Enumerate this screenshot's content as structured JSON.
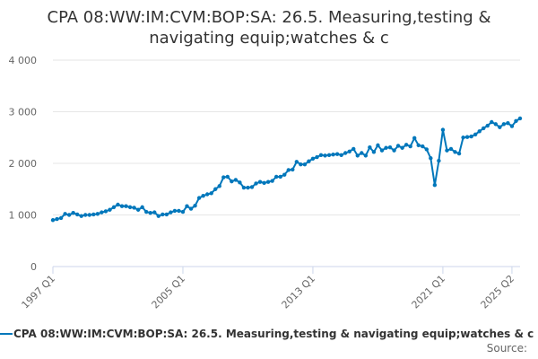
{
  "chart": {
    "title_line1": "CPA 08:WW:IM:CVM:BOP:SA: 26.5. Measuring,testing &",
    "title_line2": "navigating equip;watches & c",
    "legend_label": "CPA 08:WW:IM:CVM:BOP:SA: 26.5. Measuring,testing & navigating equip;watches & c",
    "source_label": "Source:",
    "line_color": "#0077bb",
    "grid_color": "#e6e6e6",
    "axis_label_color": "#666666"
  },
  "chart_data": {
    "type": "line",
    "title": "CPA 08:WW:IM:CVM:BOP:SA: 26.5. Measuring,testing & navigating equip;watches & c",
    "xlabel": "",
    "ylabel": "",
    "x_start": "1997 Q1",
    "x_end": "2025 Q2",
    "frequency": "quarterly",
    "x_tick_labels": [
      "1997 Q1",
      "2005 Q1",
      "2013 Q1",
      "2021 Q1",
      "2025 Q2"
    ],
    "y_ticks": [
      0,
      1000,
      2000,
      3000,
      4000
    ],
    "y_tick_labels": [
      "0",
      "1 000",
      "2 000",
      "3 000",
      "4 000"
    ],
    "ylim": [
      0,
      4000
    ],
    "grid": true,
    "legend": "bottom",
    "series": [
      {
        "name": "CPA 08:WW:IM:CVM:BOP:SA: 26.5. Measuring,testing & navigating equip;watches & c",
        "values": [
          900,
          920,
          940,
          1020,
          1000,
          1040,
          1010,
          980,
          1000,
          1000,
          1010,
          1020,
          1050,
          1070,
          1100,
          1150,
          1200,
          1170,
          1170,
          1150,
          1140,
          1100,
          1150,
          1060,
          1040,
          1050,
          980,
          1010,
          1010,
          1050,
          1080,
          1080,
          1060,
          1170,
          1120,
          1180,
          1330,
          1370,
          1400,
          1420,
          1500,
          1560,
          1730,
          1740,
          1650,
          1680,
          1630,
          1530,
          1530,
          1540,
          1610,
          1640,
          1620,
          1640,
          1660,
          1740,
          1740,
          1780,
          1870,
          1880,
          2030,
          1980,
          1980,
          2040,
          2090,
          2120,
          2160,
          2150,
          2160,
          2170,
          2180,
          2160,
          2200,
          2230,
          2280,
          2150,
          2200,
          2150,
          2310,
          2220,
          2350,
          2250,
          2300,
          2310,
          2250,
          2340,
          2300,
          2360,
          2330,
          2490,
          2350,
          2330,
          2270,
          2100,
          1580,
          2050,
          2650,
          2250,
          2280,
          2220,
          2190,
          2500,
          2510,
          2520,
          2560,
          2620,
          2680,
          2730,
          2800,
          2760,
          2700,
          2760,
          2780,
          2720,
          2820,
          2870
        ]
      }
    ]
  }
}
